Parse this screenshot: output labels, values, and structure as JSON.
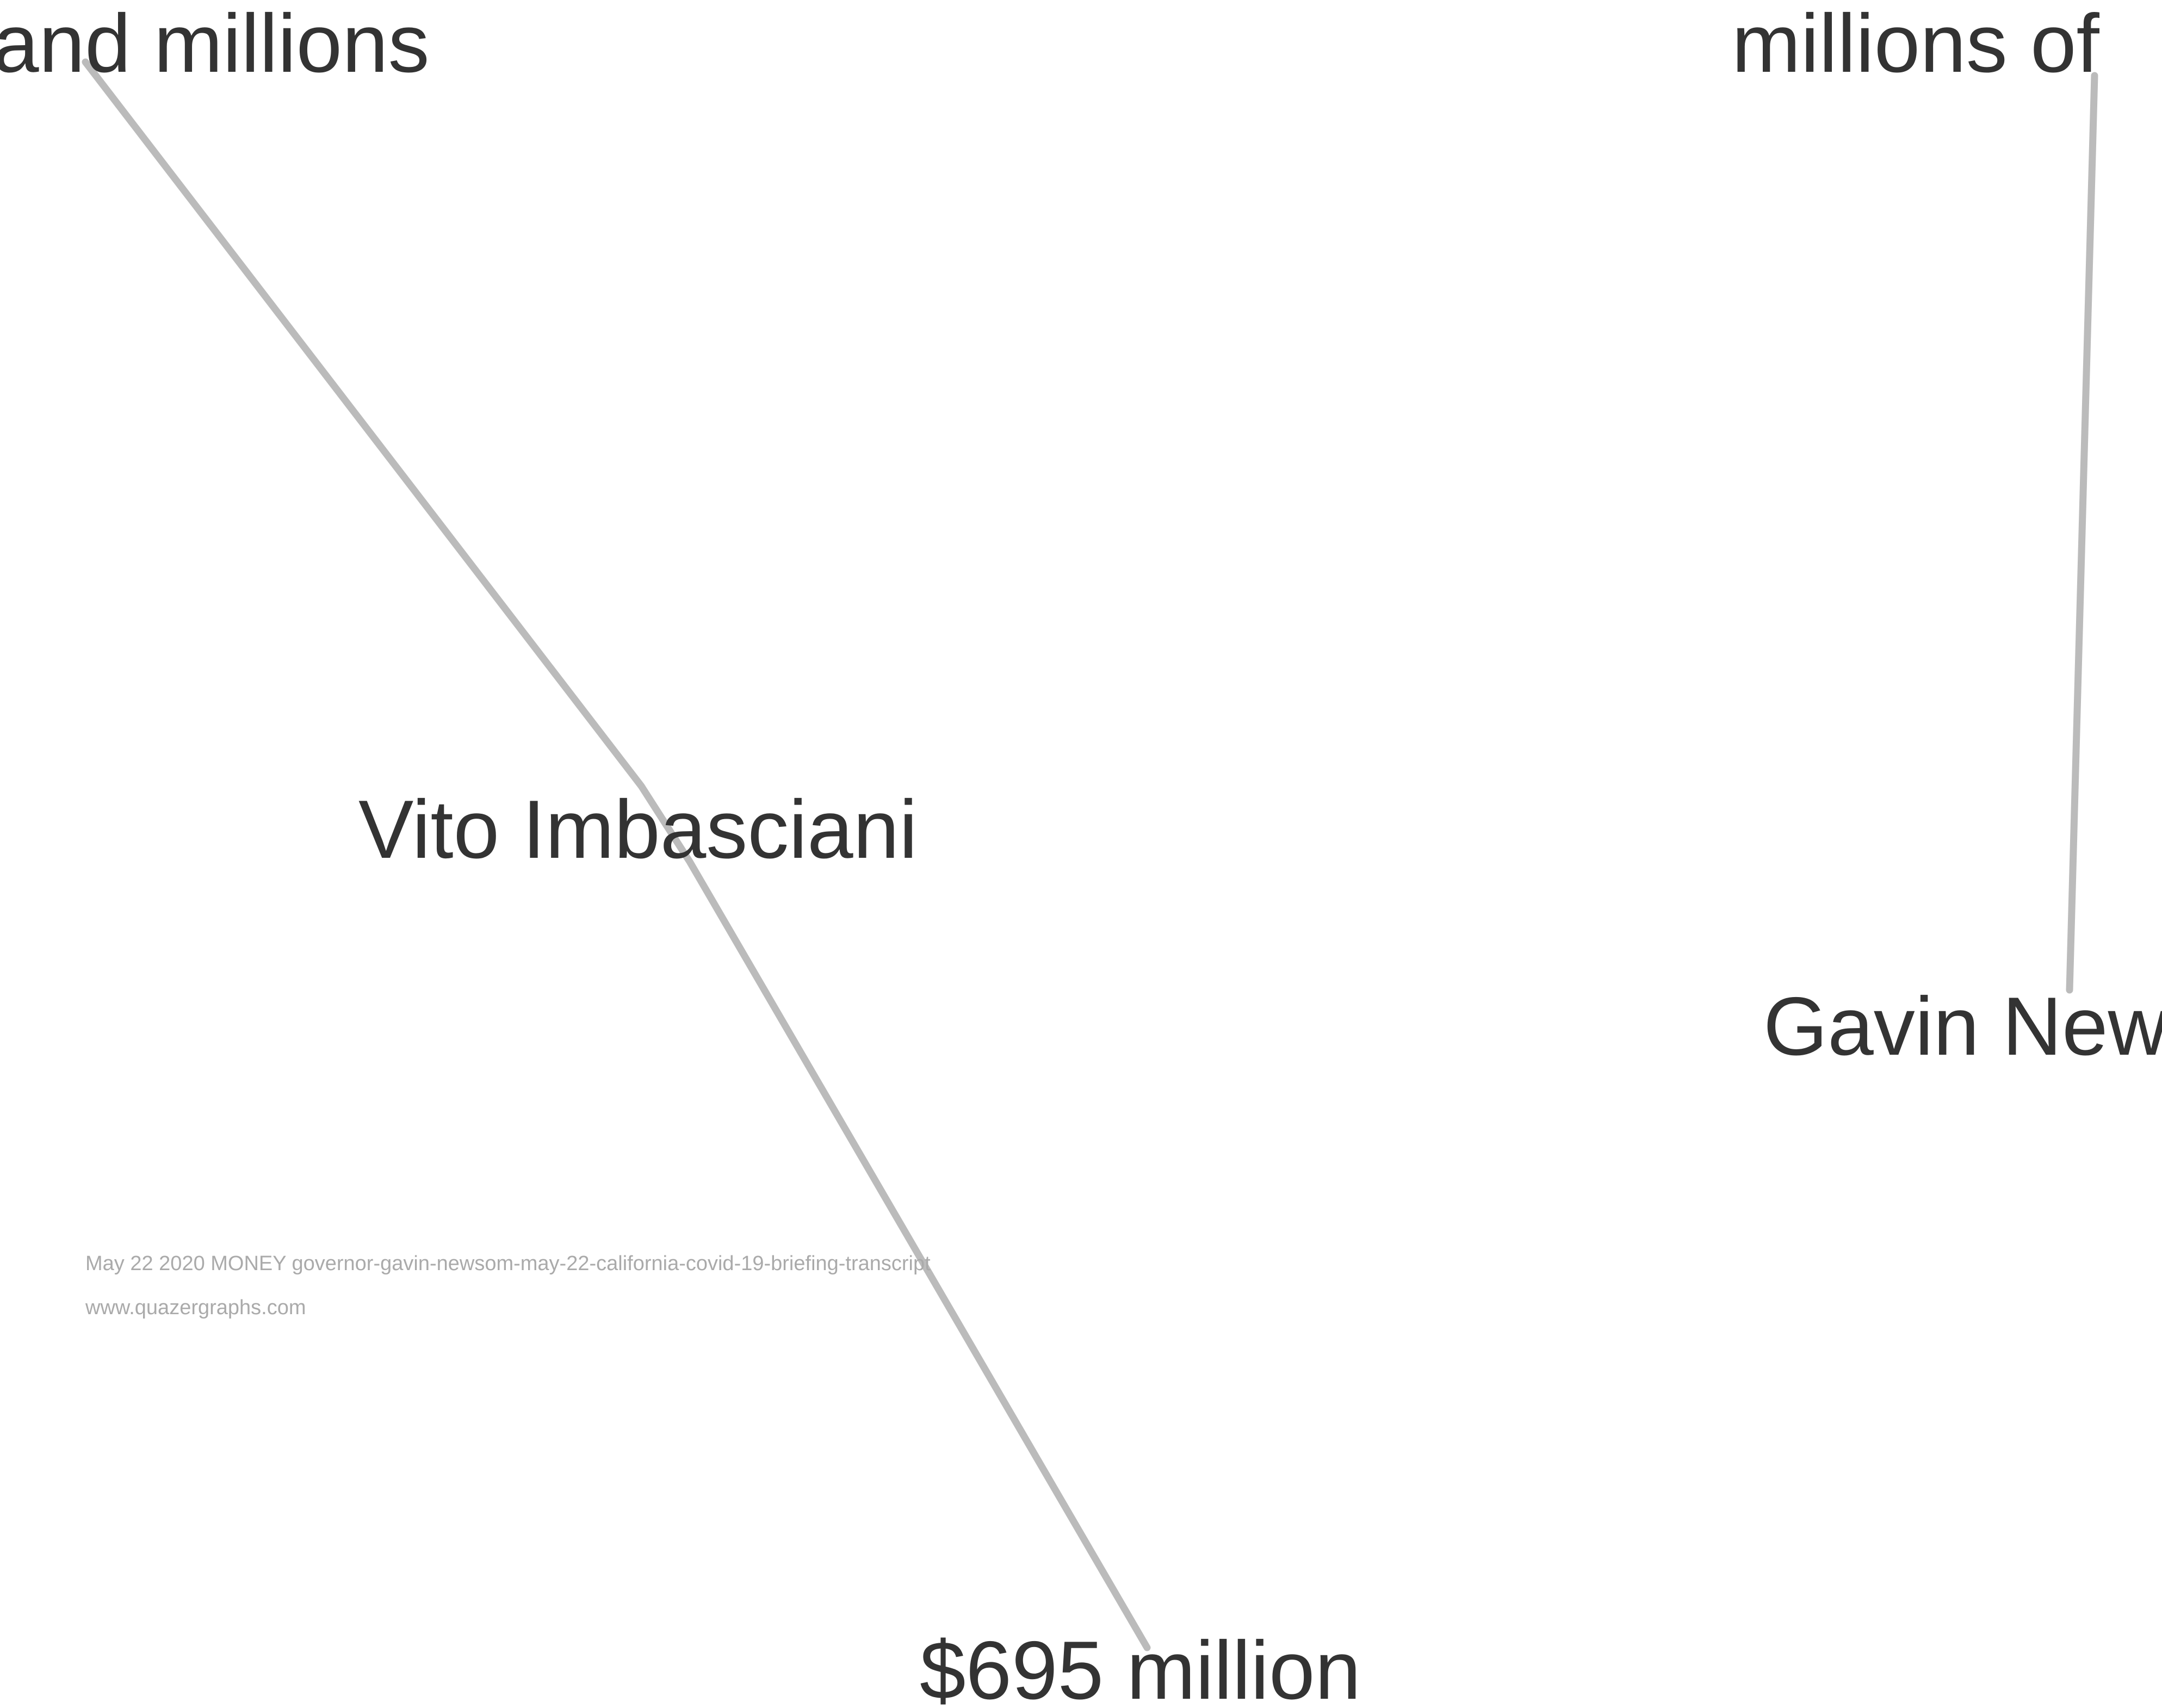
{
  "nodes": [
    {
      "label": "and millions"
    },
    {
      "label": "millions of"
    },
    {
      "label": "Vito Imbasciani"
    },
    {
      "label": "Gavin Newsom"
    },
    {
      "label": "$695 million"
    }
  ],
  "footer": {
    "source": "May 22 2020 MONEY governor-gavin-newsom-may-22-california-covid-19-briefing-transcript",
    "site": "www.quazergraphs.com"
  }
}
